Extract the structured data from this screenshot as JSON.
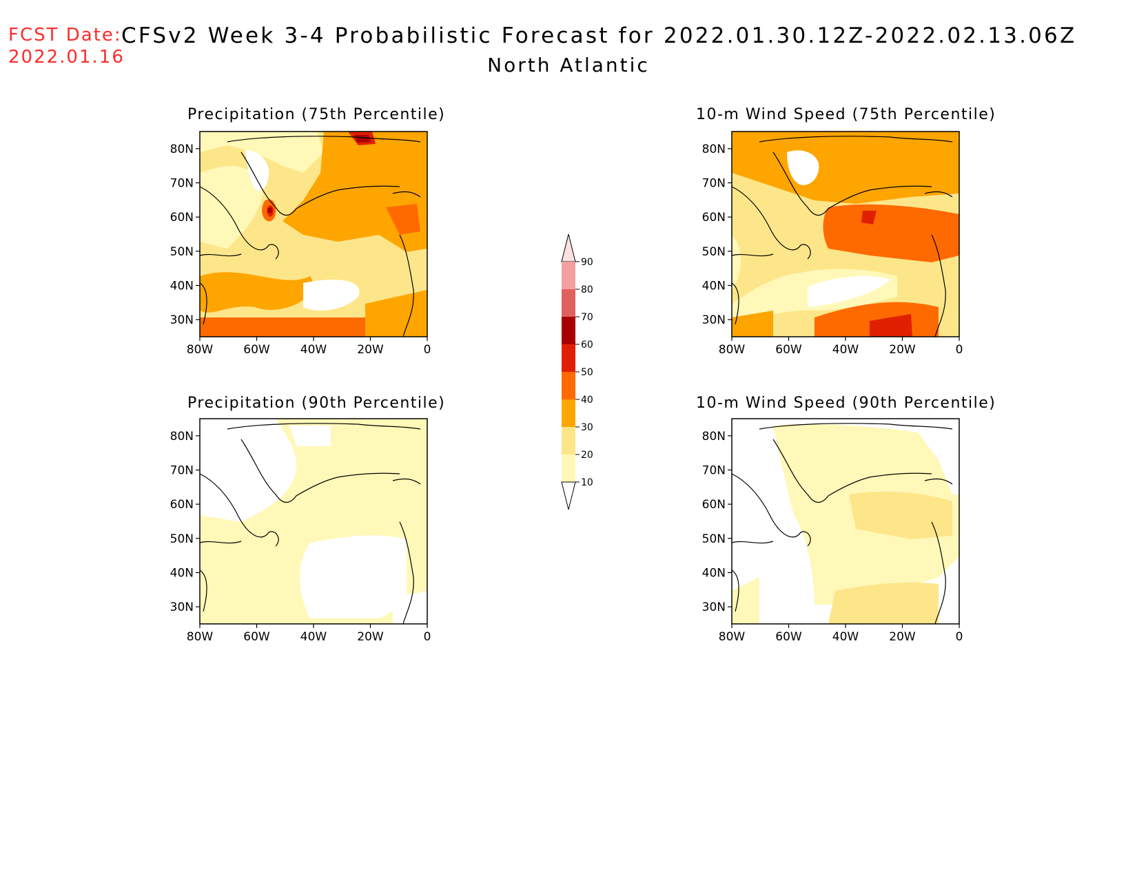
{
  "header": {
    "fcst_label": "FCST Date:",
    "fcst_date": "2022.01.16",
    "title": "CFSv2 Week 3-4 Probabilistic Forecast for 2022.01.30.12Z-2022.02.13.06Z",
    "region": "North Atlantic"
  },
  "axes": {
    "lat_ticks": [
      "80N",
      "70N",
      "60N",
      "50N",
      "40N",
      "30N"
    ],
    "lon_ticks": [
      "80W",
      "60W",
      "40W",
      "20W",
      "0"
    ]
  },
  "panels": [
    {
      "id": "precip75",
      "title": "Precipitation (75th Percentile)"
    },
    {
      "id": "wind75",
      "title": "10-m Wind Speed (75th Percentile)"
    },
    {
      "id": "precip90",
      "title": "Precipitation (90th Percentile)"
    },
    {
      "id": "wind90",
      "title": "10-m Wind Speed (90th Percentile)"
    }
  ],
  "colorbar": {
    "labels": [
      "90",
      "80",
      "70",
      "60",
      "50",
      "40",
      "30",
      "20",
      "10"
    ],
    "colors": [
      "#fde0e0",
      "#f4a0a0",
      "#e06060",
      "#a80000",
      "#e02000",
      "#ff6a00",
      "#ffa500",
      "#fde68a",
      "#fff8b8"
    ]
  },
  "palette": {
    "white": "#ffffff",
    "pale_yellow": "#fff8b8",
    "yellow": "#fde68a",
    "orange": "#ffa500",
    "dark_orange": "#ff6a00",
    "red": "#e02000",
    "dark_red": "#a80000",
    "title_red": "#ff2a2a"
  }
}
